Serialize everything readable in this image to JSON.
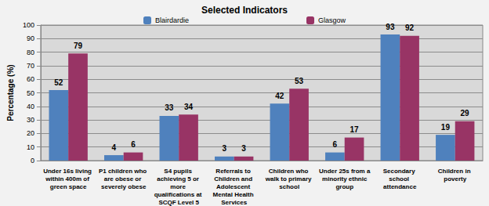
{
  "chart_data": {
    "type": "bar",
    "title": "Selected Indicators",
    "y_label": "Percentage (%)",
    "categories": [
      "Under 16s living within 400m of green space",
      "P1 children who are obese or severely obese",
      "S4 pupils achieving 5 or more qualifications at SCQF Level 5",
      "Referrals to Children and Adolescent Mental Health Services",
      "Children who walk to primary school",
      "Under 25s from a minority ethnic group",
      "Secondary school attendance",
      "Children in poverty"
    ],
    "series": [
      {
        "name": "Blairdardie",
        "color": "#4f81bd",
        "values": [
          52,
          4,
          33,
          3,
          42,
          6,
          93,
          19
        ]
      },
      {
        "name": "Glasgow",
        "color": "#983465",
        "values": [
          79,
          6,
          34,
          3,
          53,
          17,
          92,
          29
        ]
      }
    ],
    "ylim": [
      0,
      100
    ],
    "yticks": [
      0,
      10,
      20,
      30,
      40,
      50,
      60,
      70,
      80,
      90,
      100
    ],
    "grid": true,
    "legend": "top",
    "data_labels": true
  }
}
